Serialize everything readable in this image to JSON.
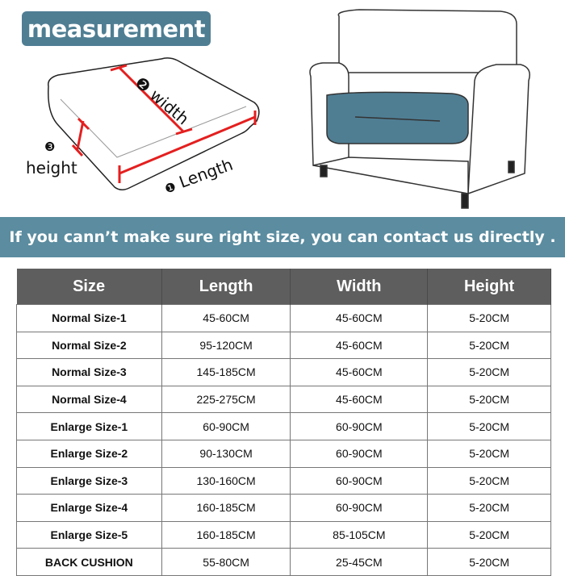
{
  "title": "measurement",
  "diagram": {
    "width_label": "width",
    "width_num": "❷",
    "height_label": "height",
    "height_num": "❸",
    "length_label": "Length",
    "length_num": "❶",
    "seat_color": "#4f7e93",
    "measure_color": "#e41f1f"
  },
  "banner": "If you cann’t make sure right size,  you can contact us directly .",
  "table": {
    "headers": [
      "Size",
      "Length",
      "Width",
      "Height"
    ],
    "rows": [
      [
        "Normal Size-1",
        "45-60CM",
        "45-60CM",
        "5-20CM"
      ],
      [
        "Normal Size-2",
        "95-120CM",
        "45-60CM",
        "5-20CM"
      ],
      [
        "Normal Size-3",
        "145-185CM",
        "45-60CM",
        "5-20CM"
      ],
      [
        "Normal Size-4",
        "225-275CM",
        "45-60CM",
        "5-20CM"
      ],
      [
        "Enlarge Size-1",
        "60-90CM",
        "60-90CM",
        "5-20CM"
      ],
      [
        "Enlarge Size-2",
        "90-130CM",
        "60-90CM",
        "5-20CM"
      ],
      [
        "Enlarge Size-3",
        "130-160CM",
        "60-90CM",
        "5-20CM"
      ],
      [
        "Enlarge Size-4",
        "160-185CM",
        "60-90CM",
        "5-20CM"
      ],
      [
        "Enlarge Size-5",
        "160-185CM",
        "85-105CM",
        "5-20CM"
      ],
      [
        "BACK CUSHION",
        "55-80CM",
        "25-45CM",
        "5-20CM"
      ]
    ]
  }
}
